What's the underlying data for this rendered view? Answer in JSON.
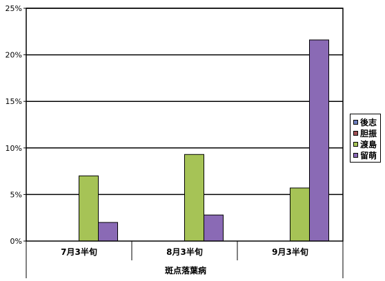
{
  "chart_data": {
    "type": "bar",
    "title": "",
    "xlabel": "斑点落葉病",
    "ylabel": "",
    "categories": [
      "7月3半旬",
      "8月3半旬",
      "9月3半旬"
    ],
    "series": [
      {
        "name": "後志",
        "color": "#6d7fbd",
        "values": [
          0,
          0,
          0
        ]
      },
      {
        "name": "胆振",
        "color": "#a05055",
        "values": [
          0,
          0,
          0
        ]
      },
      {
        "name": "渡島",
        "color": "#a6c356",
        "values": [
          7.0,
          9.3,
          5.7
        ]
      },
      {
        "name": "留萌",
        "color": "#8a6ab5",
        "values": [
          2.0,
          2.8,
          21.6
        ]
      }
    ],
    "ylim": [
      0,
      25
    ],
    "yticks": [
      "0%",
      "5%",
      "10%",
      "15%",
      "20%",
      "25%"
    ],
    "grid": true,
    "legend_position": "right"
  }
}
